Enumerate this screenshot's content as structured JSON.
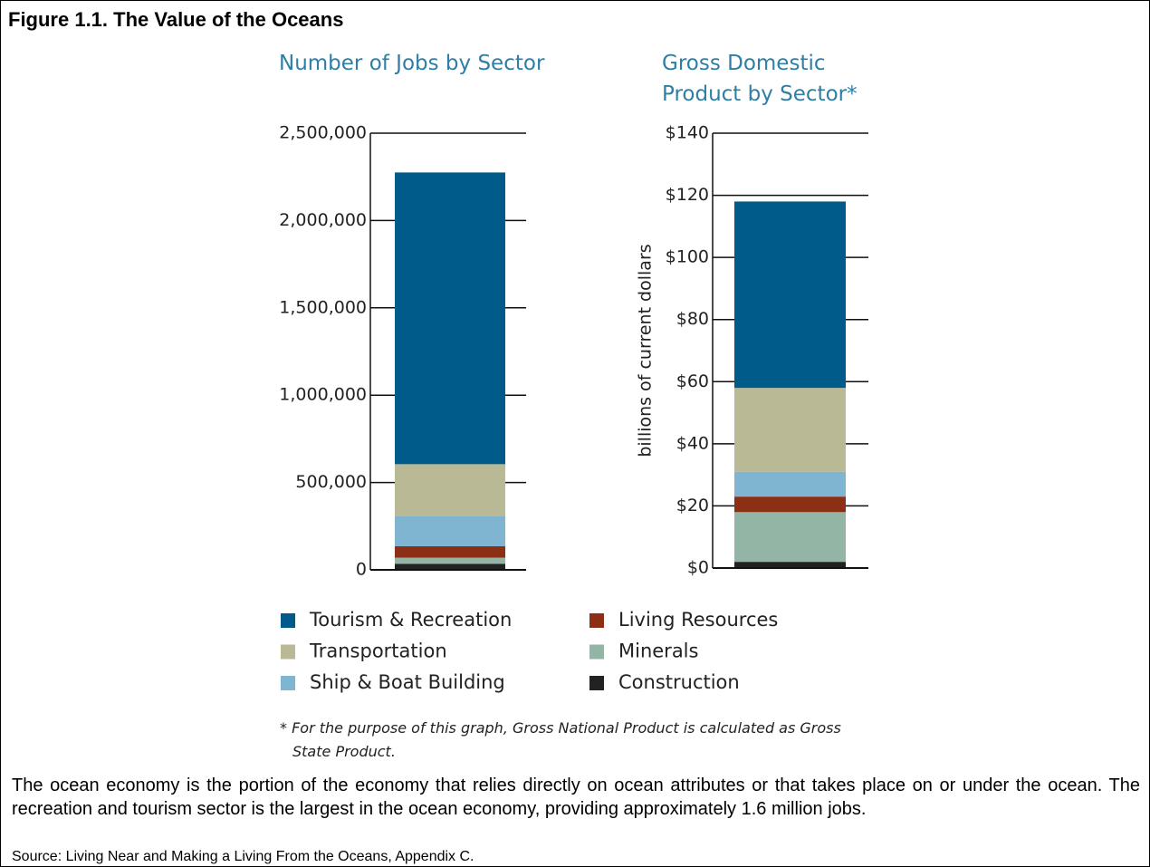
{
  "figure_title": "Figure 1.1. The Value of the Oceans",
  "legend": {
    "items": [
      {
        "name": "Tourism & Recreation",
        "color": "#005b8a"
      },
      {
        "name": "Transportation",
        "color": "#b9b995"
      },
      {
        "name": "Ship & Boat Building",
        "color": "#80b5d2"
      },
      {
        "name": "Living Resources",
        "color": "#8b3015"
      },
      {
        "name": "Minerals",
        "color": "#93b5a6"
      },
      {
        "name": "Construction",
        "color": "#222222"
      }
    ]
  },
  "chart_data": [
    {
      "type": "stacked_bar",
      "title": "Number of Jobs by Sector",
      "values": [
        1670000,
        295000,
        175000,
        65000,
        35000,
        35000
      ],
      "ylim": [
        0,
        2500000
      ],
      "yticks": [
        0,
        {
          "value": 500000,
          "label": "500,000"
        },
        {
          "value": 1000000,
          "label": "1,000,000"
        },
        {
          "value": 1500000,
          "label": "1,500,000"
        },
        {
          "value": 2000000,
          "label": "2,000,000"
        },
        {
          "value": 2500000,
          "label": "2,500,000"
        }
      ],
      "grid": true
    },
    {
      "type": "stacked_bar",
      "title": "Gross Domestic Product by Sector*",
      "ylabel": "billions of current dollars",
      "values": [
        60,
        27,
        8,
        5,
        16,
        2
      ],
      "ylim": [
        0,
        140
      ],
      "yticks": [
        {
          "value": 0,
          "label": "$0"
        },
        {
          "value": 20,
          "label": "$20"
        },
        {
          "value": 40,
          "label": "$40"
        },
        {
          "value": 60,
          "label": "$60"
        },
        {
          "value": 80,
          "label": "$80"
        },
        {
          "value": 100,
          "label": "$100"
        },
        {
          "value": 120,
          "label": "$120"
        },
        {
          "value": 140,
          "label": "$140"
        }
      ],
      "grid": true
    }
  ],
  "footnote": "* For the purpose of this graph, Gross National Product is calculated as Gross State Product.",
  "caption": "The ocean economy is the portion of the economy that relies directly on ocean attributes or that takes place on or under the ocean. The recreation and tourism sector is the largest in the ocean economy, providing approximately 1.6 million jobs.",
  "source": "Source: Living Near and Making a Living From the Oceans, Appendix C."
}
